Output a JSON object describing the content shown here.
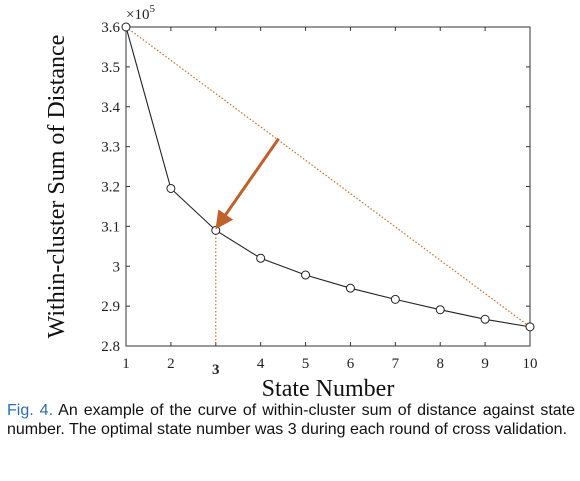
{
  "chart_data": {
    "type": "line",
    "xlabel": "State Number",
    "ylabel": "Within-cluster Sum of Distance",
    "y_multiplier_label": "×10",
    "y_multiplier_exponent": "5",
    "x": [
      1,
      2,
      3,
      4,
      5,
      6,
      7,
      8,
      9,
      10
    ],
    "series": [
      {
        "values": [
          3.6,
          3.195,
          3.09,
          3.02,
          2.978,
          2.945,
          2.917,
          2.891,
          2.867,
          2.848
        ]
      }
    ],
    "xlim": [
      1,
      10
    ],
    "ylim": [
      2.8,
      3.6
    ],
    "xticks": [
      "1",
      "2",
      "3",
      "4",
      "5",
      "6",
      "7",
      "8",
      "9",
      "10"
    ],
    "yticks": [
      "2.8",
      "2.9",
      "3",
      "3.1",
      "3.2",
      "3.3",
      "3.4",
      "3.5",
      "3.6"
    ],
    "highlighted_x_tick": "3",
    "optimal_state": 3,
    "reference_line": {
      "from": [
        1,
        3.6
      ],
      "to": [
        10,
        2.848
      ]
    },
    "arrow": {
      "from": [
        4.4,
        3.32
      ],
      "to": [
        3.1,
        3.11
      ]
    },
    "colors": {
      "curve": "#222222",
      "dotted": "#d2691e",
      "arrow": "#c0602a",
      "caption_label": "#2a6db5"
    },
    "grid": false
  },
  "caption": {
    "label": "Fig. 4.",
    "text": "An example of the curve of within-cluster sum of distance against state number. The optimal state number was 3 during each round of cross validation."
  }
}
